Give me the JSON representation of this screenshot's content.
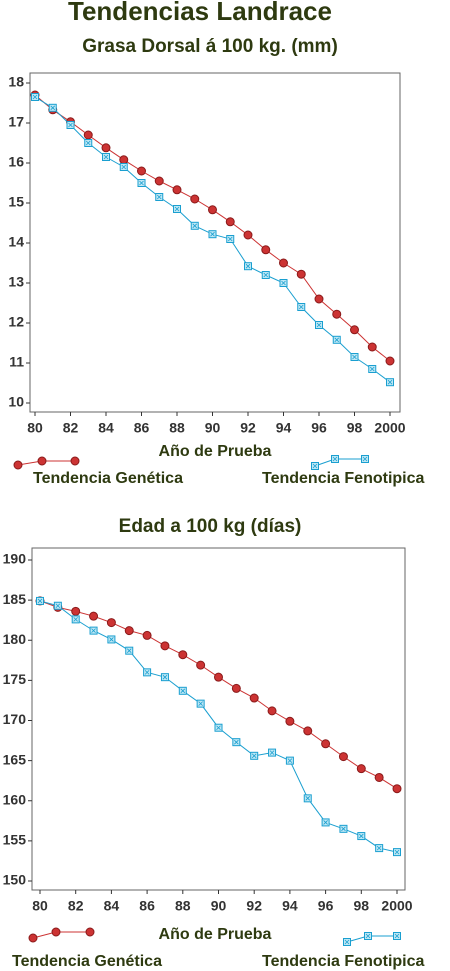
{
  "title": "Tendencias Landrace",
  "chart_data": [
    {
      "type": "line",
      "title": "Grasa Dorsal á 100 kg. (mm)",
      "xlabel": "Año de Prueba",
      "x": [
        80,
        81,
        82,
        83,
        84,
        85,
        86,
        87,
        88,
        89,
        90,
        91,
        92,
        93,
        94,
        95,
        96,
        97,
        98,
        99,
        100
      ],
      "xlim": [
        80,
        100
      ],
      "xticks": [
        80,
        82,
        84,
        86,
        88,
        90,
        92,
        94,
        96,
        98,
        {
          "value": 100,
          "label": "2000"
        }
      ],
      "ylim": [
        10,
        18
      ],
      "yticks": [
        10,
        11,
        12,
        13,
        14,
        15,
        16,
        17,
        18
      ],
      "series": [
        {
          "name": "Tendencia Genética",
          "color": "#cc3333",
          "values": [
            17.7,
            17.33,
            17.03,
            16.7,
            16.38,
            16.08,
            15.8,
            15.55,
            15.33,
            15.1,
            14.83,
            14.53,
            14.2,
            13.83,
            13.5,
            13.22,
            12.6,
            12.22,
            11.83,
            11.4,
            11.05
          ]
        },
        {
          "name": "Tendencia Fenotipica",
          "color": "#1a9fd0",
          "values": [
            17.65,
            17.38,
            16.95,
            16.5,
            16.15,
            15.9,
            15.5,
            15.15,
            14.85,
            14.43,
            14.22,
            14.1,
            13.42,
            13.2,
            13.0,
            12.4,
            11.95,
            11.58,
            11.15,
            10.85,
            10.52
          ]
        }
      ]
    },
    {
      "type": "line",
      "title": "Edad a 100 kg (días)",
      "xlabel": "Año de Prueba",
      "x": [
        80,
        81,
        82,
        83,
        84,
        85,
        86,
        87,
        88,
        89,
        90,
        91,
        92,
        93,
        94,
        95,
        96,
        97,
        98,
        99,
        100
      ],
      "xlim": [
        80,
        100
      ],
      "xticks": [
        80,
        82,
        84,
        86,
        88,
        90,
        92,
        94,
        96,
        98,
        {
          "value": 100,
          "label": "2000"
        }
      ],
      "ylim": [
        150,
        190
      ],
      "yticks": [
        150,
        155,
        160,
        165,
        170,
        175,
        180,
        185,
        190
      ],
      "series": [
        {
          "name": "Tendencia Genética",
          "color": "#cc3333",
          "values": [
            184.9,
            184.1,
            183.6,
            183.0,
            182.2,
            181.2,
            180.6,
            179.3,
            178.2,
            176.9,
            175.4,
            174.0,
            172.8,
            171.2,
            169.9,
            168.7,
            167.1,
            165.5,
            164.0,
            162.9,
            161.5
          ]
        },
        {
          "name": "Tendencia Fenotipica",
          "color": "#1a9fd0",
          "values": [
            184.9,
            184.3,
            182.6,
            181.2,
            180.1,
            178.7,
            176.0,
            175.4,
            173.7,
            172.1,
            169.1,
            167.3,
            165.6,
            166.0,
            165.0,
            160.3,
            157.3,
            156.5,
            155.6,
            154.1,
            153.6
          ]
        }
      ]
    }
  ]
}
